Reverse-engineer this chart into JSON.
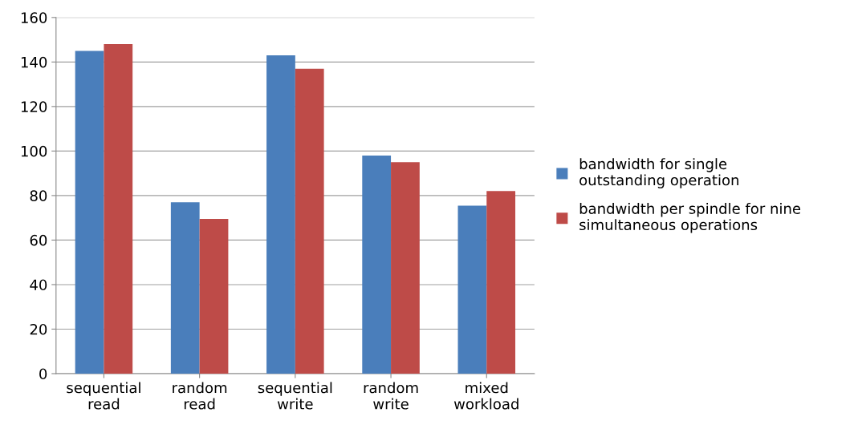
{
  "chart_data": {
    "type": "bar",
    "categories": [
      "sequential\nread",
      "random\nread",
      "sequential\nwrite",
      "random\nwrite",
      "mixed\nworkload"
    ],
    "series": [
      {
        "name": "bandwidth for single\noutstanding operation",
        "color": "#4a7ebb",
        "values": [
          145,
          77,
          143,
          98,
          75.5
        ]
      },
      {
        "name": "bandwidth per spindle for nine\nsimultaneous operations",
        "color": "#be4b48",
        "values": [
          148,
          69.5,
          137,
          95,
          82
        ]
      }
    ],
    "ylim": [
      0,
      160
    ],
    "yticks": [
      0,
      20,
      40,
      60,
      80,
      100,
      120,
      140,
      160
    ],
    "grid": "y",
    "legend": "right"
  }
}
